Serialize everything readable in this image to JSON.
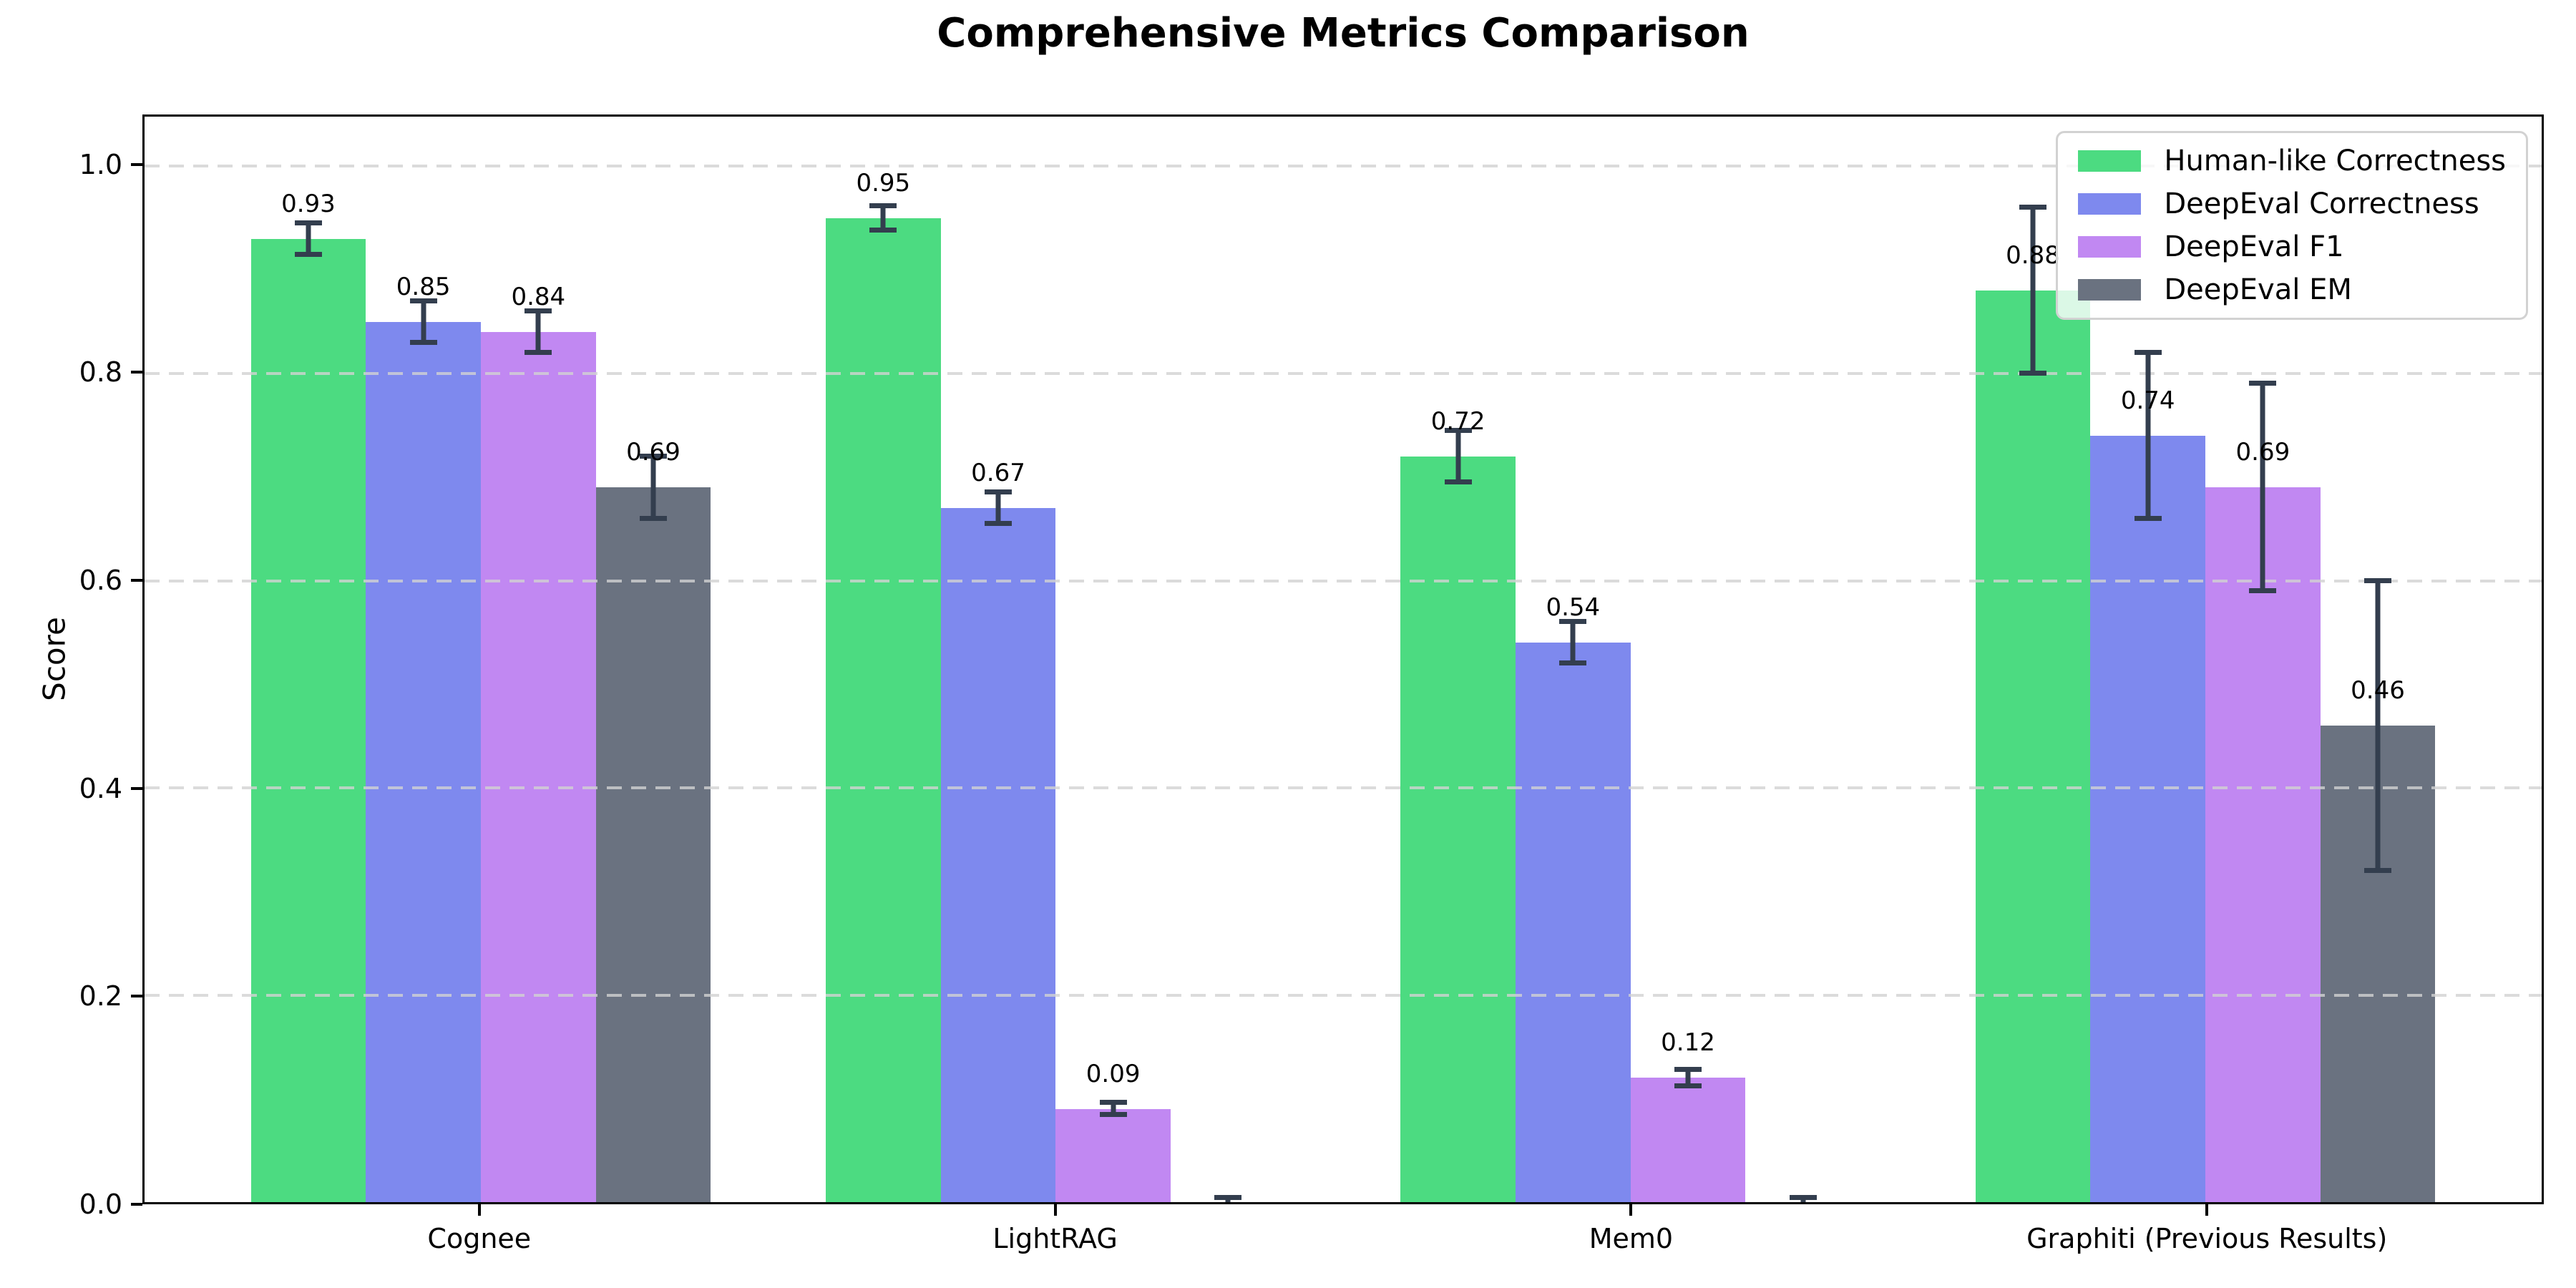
{
  "chart_data": {
    "type": "bar",
    "title": "Comprehensive Metrics Comparison",
    "xlabel": "",
    "ylabel": "Score",
    "categories": [
      "Cognee",
      "LightRAG",
      "Mem0",
      "Graphiti (Previous Results)"
    ],
    "series": [
      {
        "name": "Human-like Correctness",
        "color": "#4cdb81",
        "values": [
          0.93,
          0.95,
          0.72,
          0.88
        ],
        "errors": [
          0.015,
          0.012,
          0.025,
          0.08
        ],
        "labels": [
          "0.93",
          "0.95",
          "0.72",
          "0.88"
        ]
      },
      {
        "name": "DeepEval Correctness",
        "color": "#7e89ee",
        "values": [
          0.85,
          0.67,
          0.54,
          0.74
        ],
        "errors": [
          0.02,
          0.015,
          0.02,
          0.08
        ],
        "labels": [
          "0.85",
          "0.67",
          "0.54",
          "0.74"
        ]
      },
      {
        "name": "DeepEval F1",
        "color": "#c188f2",
        "values": [
          0.84,
          0.09,
          0.12,
          0.69
        ],
        "errors": [
          0.02,
          0.006,
          0.008,
          0.1
        ],
        "labels": [
          "0.84",
          "0.09",
          "0.12",
          "0.69"
        ]
      },
      {
        "name": "DeepEval EM",
        "color": "#6a7280",
        "values": [
          0.69,
          0.0,
          0.0,
          0.46
        ],
        "errors": [
          0.03,
          0.004,
          0.004,
          0.14
        ],
        "labels": [
          "0.69",
          "",
          "",
          "0.46"
        ]
      }
    ],
    "yticks": [
      0.0,
      0.2,
      0.4,
      0.6,
      0.8,
      1.0
    ],
    "ylim": [
      0,
      1.048
    ],
    "xlim": [
      -0.585,
      3.585
    ],
    "bar_width": 0.2,
    "label_offset": 0.02,
    "grid": "horizontal-dashed",
    "legend_position": "upper-right",
    "colors": {
      "error_bar": "#333e4e",
      "grid_line": "#d2d2d2",
      "axis": "#000000",
      "legend_border": "#d2d2d2"
    }
  }
}
